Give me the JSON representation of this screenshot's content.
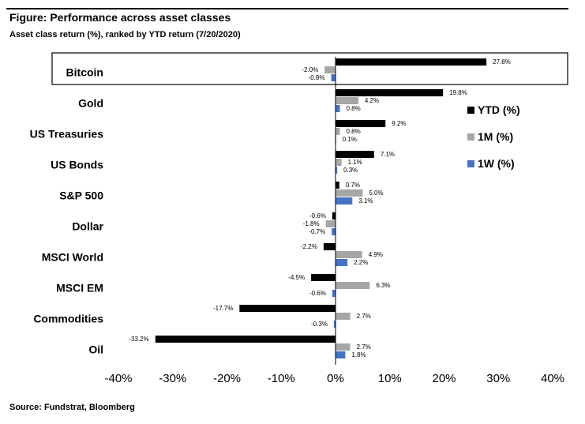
{
  "figure": {
    "title": "Figure: Performance across asset classes",
    "subtitle": "Asset class return (%), ranked by YTD return (7/20/2020)",
    "source": "Source: Fundstrat, Bloomberg"
  },
  "colors": {
    "ytd": "#000000",
    "m1": "#a6a6a6",
    "w1": "#4472c4"
  },
  "chart_data": {
    "type": "bar",
    "orientation": "horizontal",
    "categories": [
      "Bitcoin",
      "Gold",
      "US Treasuries",
      "US Bonds",
      "S&P 500",
      "Dollar",
      "MSCI World",
      "MSCI EM",
      "Commodities",
      "Oil"
    ],
    "series": [
      {
        "name": "YTD (%)",
        "values": [
          27.8,
          19.8,
          9.2,
          7.1,
          0.7,
          -0.6,
          -2.2,
          -4.5,
          -17.7,
          -33.2
        ],
        "labels": [
          "27.8%",
          "19.8%",
          "9.2%",
          "7.1%",
          "0.7%",
          "-0.6%",
          "-2.2%",
          "-4.5%",
          "-17.7%",
          "-33.2%"
        ]
      },
      {
        "name": "1M (%)",
        "values": [
          -2.0,
          4.2,
          0.8,
          1.1,
          5.0,
          -1.8,
          4.9,
          6.3,
          2.7,
          2.7
        ],
        "labels": [
          "-2.0%",
          "4.2%",
          "0.8%",
          "1.1%",
          "5.0%",
          "-1.8%",
          "4.9%",
          "6.3%",
          "2.7%",
          "2.7%"
        ]
      },
      {
        "name": "1W (%)",
        "values": [
          -0.8,
          0.8,
          0.1,
          0.3,
          3.1,
          -0.7,
          2.2,
          -0.6,
          -0.3,
          1.8
        ],
        "labels": [
          "-0.8%",
          "0.8%",
          "0.1%",
          "0.3%",
          "3.1%",
          "-0.7%",
          "2.2%",
          "-0.6%",
          "-0.3%",
          "1.8%"
        ]
      }
    ],
    "xlim": [
      -40,
      40
    ],
    "xticks": [
      "-40%",
      "-30%",
      "-20%",
      "-10%",
      "0%",
      "10%",
      "20%",
      "30%",
      "40%"
    ],
    "highlighted_category": "Bitcoin",
    "legend_position": "right",
    "grid": false
  }
}
